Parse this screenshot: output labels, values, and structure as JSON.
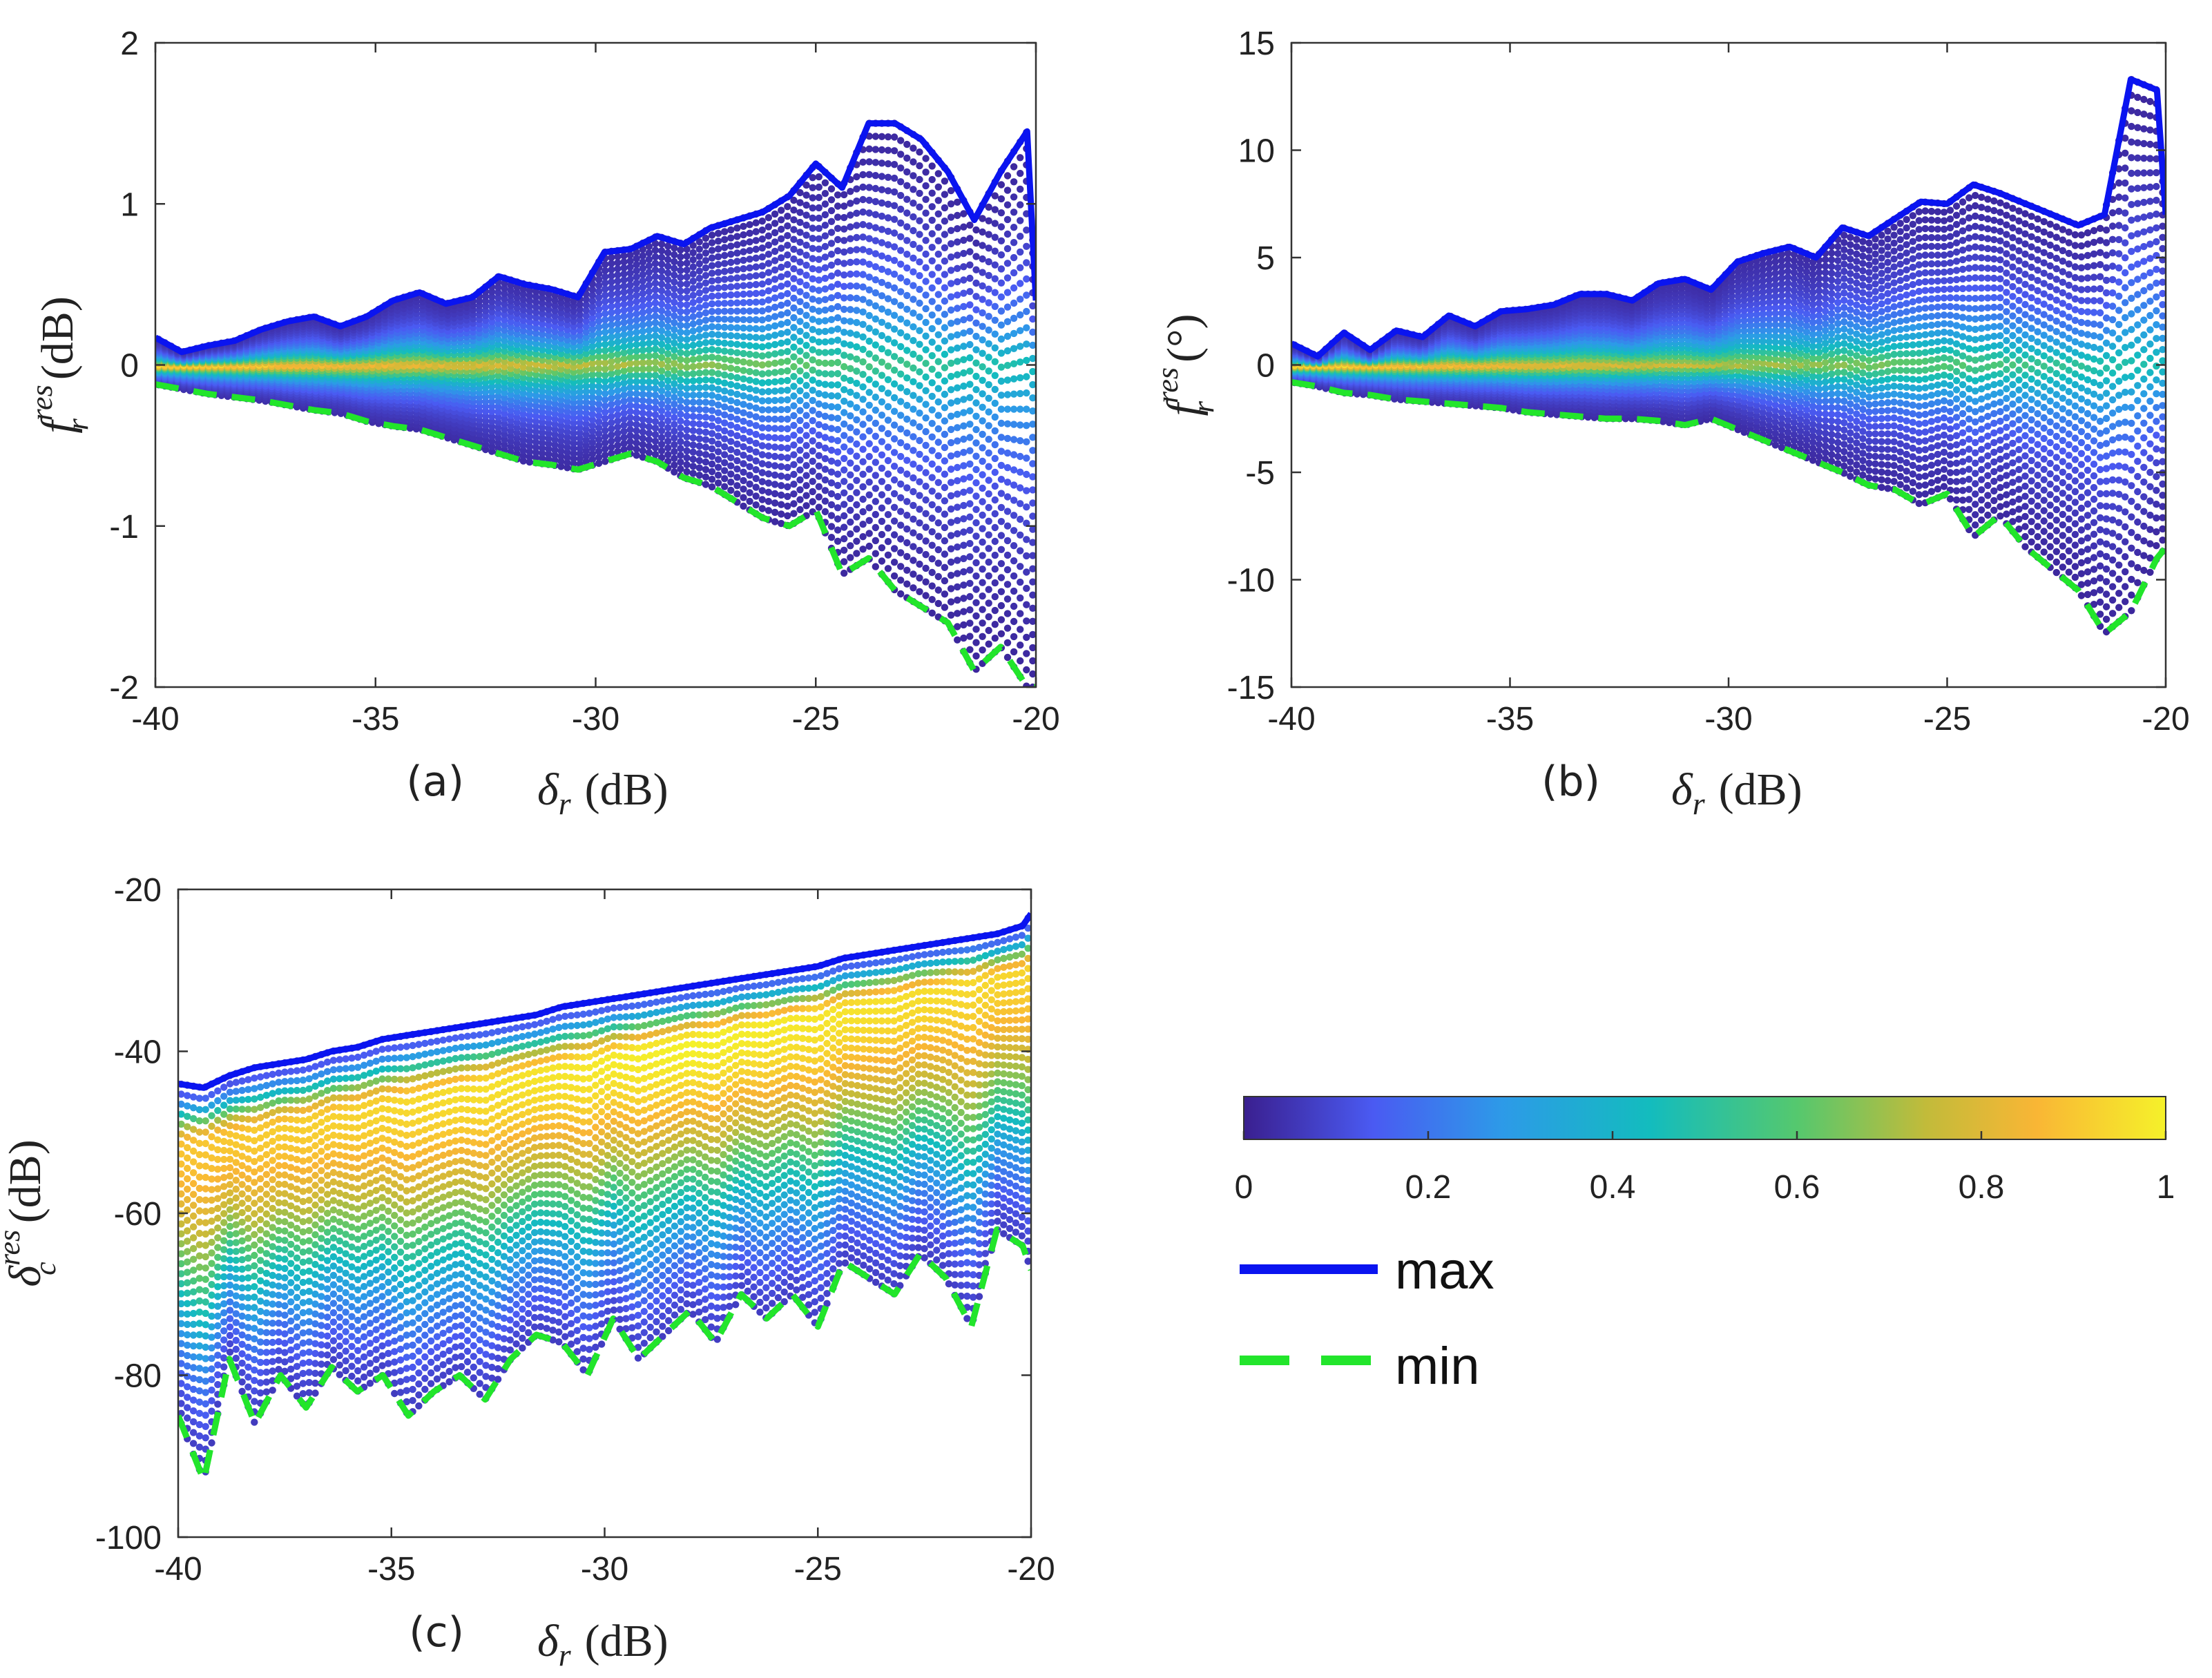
{
  "chart_data": [
    {
      "id": "a",
      "type": "scatter",
      "panel_label": "(a)",
      "xlabel": "δ_r (dB)",
      "xlabel_parts": {
        "sym": "δ",
        "sub": "r",
        "unit": "(dB)"
      },
      "ylabel": "f_r^res (dB)",
      "ylabel_parts": {
        "sym": "f",
        "sub": "r",
        "sup": "res",
        "unit": "(dB)"
      },
      "xlim": [
        -40,
        -20
      ],
      "ylim": [
        -2,
        2
      ],
      "xticks": [
        -40,
        -35,
        -30,
        -25,
        -20
      ],
      "yticks": [
        -2,
        -1,
        0,
        1,
        2
      ],
      "xtick_labels": [
        "-40",
        "-35",
        "-30",
        "-25",
        "-20"
      ],
      "ytick_labels": [
        "-2",
        "-1",
        "0",
        "1",
        "2"
      ],
      "x": [
        -40,
        -39.4,
        -38.8,
        -38.2,
        -37.6,
        -37,
        -36.4,
        -35.8,
        -35.2,
        -34.6,
        -34,
        -33.4,
        -32.8,
        -32.2,
        -31.6,
        -31,
        -30.4,
        -29.8,
        -29.2,
        -28.6,
        -28,
        -27.4,
        -26.8,
        -26.2,
        -25.6,
        -25,
        -24.4,
        -23.8,
        -23.2,
        -22.6,
        -22,
        -21.4,
        -20.8,
        -20.2,
        -20
      ],
      "series": [
        {
          "name": "max",
          "values": [
            0.17,
            0.08,
            0.12,
            0.15,
            0.22,
            0.27,
            0.3,
            0.24,
            0.3,
            0.4,
            0.45,
            0.38,
            0.42,
            0.55,
            0.5,
            0.47,
            0.42,
            0.7,
            0.72,
            0.8,
            0.75,
            0.85,
            0.9,
            0.95,
            1.05,
            1.25,
            1.1,
            1.5,
            1.5,
            1.4,
            1.2,
            0.9,
            1.2,
            1.45,
            0.4
          ]
        },
        {
          "name": "min",
          "values": [
            -0.12,
            -0.15,
            -0.18,
            -0.2,
            -0.22,
            -0.25,
            -0.28,
            -0.3,
            -0.35,
            -0.38,
            -0.4,
            -0.45,
            -0.5,
            -0.55,
            -0.6,
            -0.62,
            -0.65,
            -0.6,
            -0.55,
            -0.6,
            -0.7,
            -0.75,
            -0.85,
            -0.95,
            -1.0,
            -0.9,
            -1.3,
            -1.2,
            -1.4,
            -1.5,
            -1.6,
            -1.9,
            -1.75,
            -2.0,
            -2.0
          ]
        }
      ]
    },
    {
      "id": "b",
      "type": "scatter",
      "panel_label": "(b)",
      "xlabel": "δ_r (dB)",
      "xlabel_parts": {
        "sym": "δ",
        "sub": "r",
        "unit": "(dB)"
      },
      "ylabel": "f_r^res (°)",
      "ylabel_parts": {
        "sym": "f",
        "sub": "r",
        "sup": "res",
        "unit": "(°)"
      },
      "xlim": [
        -40,
        -20
      ],
      "ylim": [
        -15,
        15
      ],
      "xticks": [
        -40,
        -35,
        -30,
        -25,
        -20
      ],
      "yticks": [
        -15,
        -10,
        -5,
        0,
        5,
        10,
        15
      ],
      "xtick_labels": [
        "-40",
        "-35",
        "-30",
        "-25",
        "-20"
      ],
      "ytick_labels": [
        "-15",
        "-10",
        "-5",
        "0",
        "5",
        "10",
        "15"
      ],
      "x": [
        -40,
        -39.4,
        -38.8,
        -38.2,
        -37.6,
        -37,
        -36.4,
        -35.8,
        -35.2,
        -34.6,
        -34,
        -33.4,
        -32.8,
        -32.2,
        -31.6,
        -31,
        -30.4,
        -29.8,
        -29.2,
        -28.6,
        -28,
        -27.4,
        -26.8,
        -26.2,
        -25.6,
        -25,
        -24.4,
        -23.8,
        -23.2,
        -22.6,
        -22,
        -21.4,
        -20.8,
        -20.2,
        -20
      ],
      "series": [
        {
          "name": "max",
          "values": [
            1.0,
            0.4,
            1.5,
            0.7,
            1.6,
            1.3,
            2.3,
            1.8,
            2.5,
            2.6,
            2.8,
            3.3,
            3.3,
            3.0,
            3.8,
            4.0,
            3.5,
            4.8,
            5.2,
            5.5,
            5.0,
            6.4,
            6.0,
            6.8,
            7.6,
            7.5,
            8.4,
            8.0,
            7.5,
            7.0,
            6.5,
            7.0,
            13.3,
            12.8,
            7.0
          ]
        },
        {
          "name": "min",
          "values": [
            -0.8,
            -1.0,
            -1.3,
            -1.4,
            -1.6,
            -1.7,
            -1.8,
            -1.9,
            -2.0,
            -2.2,
            -2.3,
            -2.4,
            -2.5,
            -2.5,
            -2.6,
            -2.8,
            -2.5,
            -3.0,
            -3.5,
            -4.0,
            -4.5,
            -5.0,
            -5.6,
            -5.8,
            -6.5,
            -6.0,
            -8.0,
            -7.0,
            -8.5,
            -9.5,
            -10.5,
            -12.5,
            -11.5,
            -9.0,
            -8.5
          ]
        }
      ]
    },
    {
      "id": "c",
      "type": "scatter",
      "panel_label": "(c)",
      "xlabel": "δ_r (dB)",
      "xlabel_parts": {
        "sym": "δ",
        "sub": "r",
        "unit": "(dB)"
      },
      "ylabel": "δ_c^res (dB)",
      "ylabel_parts": {
        "sym": "δ",
        "sub": "c",
        "sup": "res",
        "unit": "(dB)"
      },
      "xlim": [
        -40,
        -20
      ],
      "ylim": [
        -100,
        -20
      ],
      "xticks": [
        -40,
        -35,
        -30,
        -25,
        -20
      ],
      "yticks": [
        -100,
        -80,
        -60,
        -40,
        -20
      ],
      "xtick_labels": [
        "-40",
        "-35",
        "-30",
        "-25",
        "-20"
      ],
      "ytick_labels": [
        "-100",
        "-80",
        "-60",
        "-40",
        "-20"
      ],
      "x": [
        -40,
        -39.4,
        -38.8,
        -38.2,
        -37.6,
        -37,
        -36.4,
        -35.8,
        -35.2,
        -34.6,
        -34,
        -33.4,
        -32.8,
        -32.2,
        -31.6,
        -31,
        -30.4,
        -29.8,
        -29.2,
        -28.6,
        -28,
        -27.4,
        -26.8,
        -26.2,
        -25.6,
        -25,
        -24.4,
        -23.8,
        -23.2,
        -22.6,
        -22,
        -21.4,
        -20.8,
        -20.2,
        -20
      ],
      "series": [
        {
          "name": "max",
          "values": [
            -44,
            -44.5,
            -43,
            -42,
            -41.5,
            -41,
            -40,
            -39.5,
            -38.5,
            -38,
            -37.5,
            -37,
            -36.5,
            -36,
            -35.5,
            -34.5,
            -34,
            -33.5,
            -33,
            -32.5,
            -32,
            -31.5,
            -31,
            -30.5,
            -30,
            -29.5,
            -28.5,
            -28,
            -27.5,
            -27,
            -26.5,
            -26,
            -25.5,
            -24.5,
            -23
          ]
        },
        {
          "name": "min",
          "values": [
            -85,
            -93,
            -78,
            -86,
            -80,
            -84,
            -79,
            -82,
            -80,
            -85,
            -82,
            -80,
            -83,
            -78,
            -75,
            -76,
            -80,
            -73,
            -78,
            -75,
            -72,
            -76,
            -70,
            -73,
            -70,
            -74,
            -66,
            -68,
            -70,
            -65,
            -68,
            -74,
            -62,
            -64,
            -67
          ]
        }
      ]
    }
  ],
  "colorbar": {
    "ticks": [
      0,
      0.2,
      0.4,
      0.6,
      0.8,
      1
    ],
    "tick_labels": [
      "0",
      "0.2",
      "0.4",
      "0.6",
      "0.8",
      "1"
    ],
    "colors": [
      "#3a1f8f",
      "#4a5af2",
      "#2d9ae8",
      "#13bcbe",
      "#55c86e",
      "#c2bb3a",
      "#f9b635",
      "#f5f12a"
    ]
  },
  "legend": [
    {
      "label": "max",
      "color": "#0a14f0",
      "style": "solid"
    },
    {
      "label": "min",
      "color": "#22e52b",
      "style": "dashed"
    }
  ]
}
